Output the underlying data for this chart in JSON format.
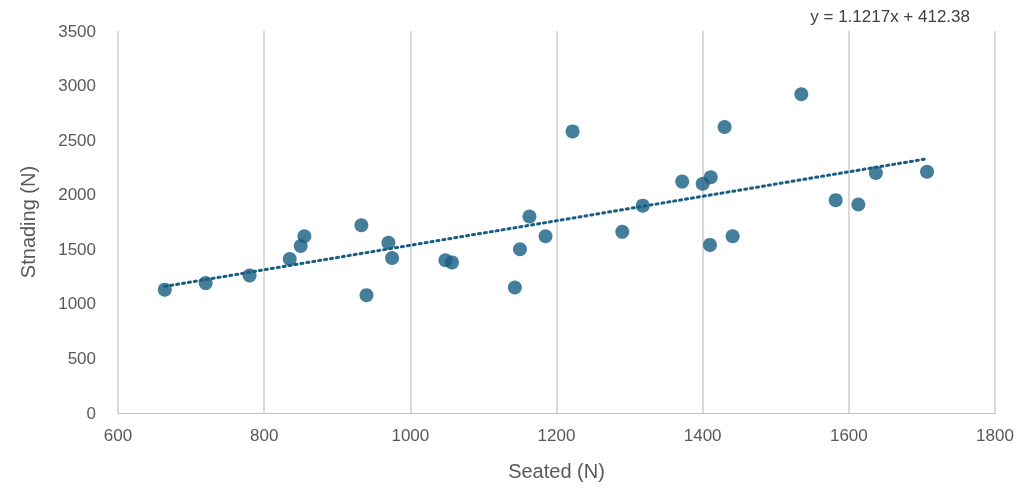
{
  "chart_data": {
    "type": "scatter",
    "xlabel": "Seated (N)",
    "ylabel": "Stnading (N)",
    "annotations": [
      "y = 1.1217x + 412.38"
    ],
    "xlim": [
      600,
      1800
    ],
    "xticks": [
      600,
      800,
      1000,
      1200,
      1400,
      1600,
      1800
    ],
    "ylim": [
      0,
      3500
    ],
    "yticks": [
      0,
      500,
      1000,
      1500,
      2000,
      2500,
      3000,
      3500
    ],
    "grid": "x",
    "marker": "circle",
    "series": [
      {
        "color": "#175e82",
        "x": [
          664,
          720,
          780,
          835,
          850,
          855,
          933,
          940,
          970,
          975,
          1048,
          1057,
          1143,
          1150,
          1163,
          1185,
          1222,
          1290,
          1318,
          1372,
          1400,
          1411,
          1410,
          1430,
          1441,
          1535,
          1582,
          1613,
          1637,
          1707
        ],
        "values": [
          1130,
          1190,
          1260,
          1410,
          1530,
          1620,
          1720,
          1080,
          1560,
          1420,
          1400,
          1380,
          1150,
          1500,
          1800,
          1620,
          2580,
          1660,
          1900,
          2120,
          2100,
          2160,
          1540,
          2620,
          1620,
          2920,
          1950,
          1910,
          2200,
          2210
        ]
      },
      {
        "type": "line",
        "color": "#175e82",
        "line_style": "dotted",
        "marker": "none",
        "x": [
          664,
          1707
        ],
        "values": [
          1160,
          2330
        ]
      }
    ]
  }
}
